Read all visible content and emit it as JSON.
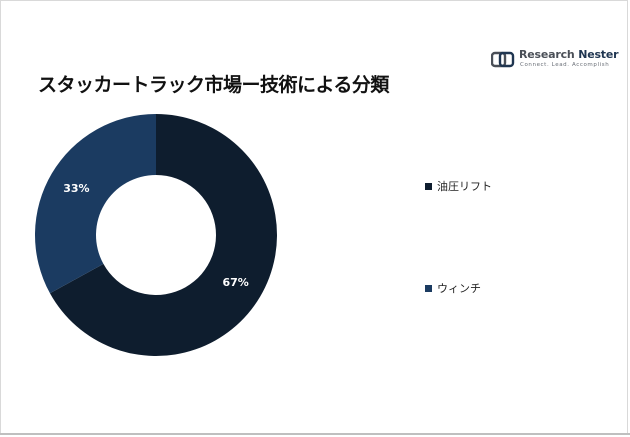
{
  "header": {
    "title": "スタッカートラック市場ー技術による分類"
  },
  "logo": {
    "name_part1": "Research",
    "name_part2": "Nester",
    "tagline": "Connect. Lead. Accomplish"
  },
  "chart_data": {
    "type": "pie",
    "title": "スタッカートラック市場ー技術による分類",
    "donut": true,
    "categories": [
      "油圧リフト",
      "ウィンチ"
    ],
    "values": [
      67,
      33
    ],
    "labels": [
      "67%",
      "33%"
    ],
    "colors": [
      "#0e1d2e",
      "#1b3b61"
    ],
    "legend_position": "right"
  }
}
